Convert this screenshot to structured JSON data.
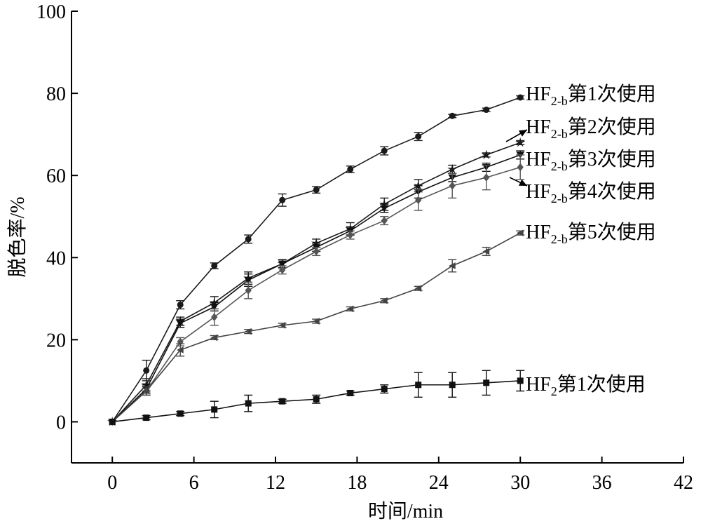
{
  "chart_data": {
    "type": "line",
    "xlabel": "时间/min",
    "ylabel": "脱色率/%",
    "xlim": [
      -3,
      42
    ],
    "ylim": [
      -10,
      100
    ],
    "xticks": [
      0,
      6,
      12,
      18,
      24,
      30,
      36,
      42
    ],
    "yticks": [
      0,
      20,
      40,
      60,
      80,
      100
    ],
    "x_tick_labels": [
      "0",
      "6",
      "12",
      "18",
      "24",
      "30",
      "36",
      "42"
    ],
    "y_tick_labels": [
      "0",
      "20",
      "40",
      "60",
      "80",
      "100"
    ],
    "grid": false,
    "x": [
      0,
      2.5,
      5,
      7.5,
      10,
      12.5,
      15,
      17.5,
      20,
      22.5,
      25,
      27.5,
      30
    ],
    "series": [
      {
        "name": "HF2-b第1次使用",
        "label_main": "HF",
        "label_sub": "2-b",
        "label_rest": "第1次使用",
        "marker": "circle",
        "color": "#1a1a1a",
        "values": [
          0,
          12.5,
          28.5,
          38,
          44.5,
          54,
          56.5,
          61.5,
          66,
          69.5,
          74.5,
          76,
          79
        ],
        "errors": [
          0,
          2.5,
          1,
          0.7,
          1,
          1.5,
          0.8,
          0.8,
          1,
          1,
          0.4,
          0.4,
          0.4
        ]
      },
      {
        "name": "HF2-b第2次使用",
        "label_main": "HF",
        "label_sub": "2-b",
        "label_rest": "第2次使用",
        "marker": "star",
        "color": "#1a1a1a",
        "values": [
          0,
          9,
          24.5,
          29,
          35,
          38.5,
          43.5,
          47,
          53,
          57.5,
          61.5,
          65,
          68
        ],
        "errors": [
          0,
          1.5,
          1,
          1.5,
          1.5,
          1,
          1,
          1.5,
          1.5,
          1.5,
          1,
          0.5,
          0.5
        ]
      },
      {
        "name": "HF2-b第3次使用",
        "label_main": "HF",
        "label_sub": "2-b",
        "label_rest": "第3次使用",
        "marker": "triangle-down",
        "color": "#111111",
        "values": [
          0,
          8,
          24,
          28,
          34.5,
          38.5,
          42.5,
          46.5,
          52,
          56,
          59.5,
          62,
          65
        ],
        "errors": [
          0,
          1,
          1,
          1,
          1.5,
          1,
          1,
          1,
          1,
          1.5,
          1,
          1,
          1
        ]
      },
      {
        "name": "HF2-b第4次使用",
        "label_main": "HF",
        "label_sub": "2-b",
        "label_rest": "第4次使用",
        "marker": "diamond",
        "color": "#555555",
        "values": [
          0,
          7.5,
          19.5,
          25.5,
          32,
          37,
          41.5,
          45.5,
          49,
          54,
          57.5,
          59.5,
          62
        ],
        "errors": [
          0,
          1,
          1,
          2,
          2,
          1,
          1,
          1,
          1,
          2.5,
          3,
          3,
          3
        ]
      },
      {
        "name": "HF2-b第5次使用",
        "label_main": "HF",
        "label_sub": "2-b",
        "label_rest": "第5次使用",
        "marker": "tri-left",
        "color": "#444444",
        "values": [
          0,
          7.5,
          17.5,
          20.5,
          22,
          23.5,
          24.5,
          27.5,
          29.5,
          32.5,
          38,
          41.5,
          46
        ],
        "errors": [
          0,
          1,
          1.5,
          0.5,
          0.5,
          0.5,
          0.5,
          0.5,
          0.5,
          0.5,
          1.5,
          1,
          0.5
        ]
      },
      {
        "name": "HF2第1次使用",
        "label_main": "HF",
        "label_sub": "2",
        "label_rest": "第1次使用",
        "marker": "square",
        "color": "#111111",
        "values": [
          0,
          1,
          2,
          3,
          4.5,
          5,
          5.5,
          7,
          8,
          9,
          9,
          9.5,
          10
        ],
        "errors": [
          0,
          0.5,
          0.5,
          2,
          2,
          0.5,
          1,
          0.5,
          1,
          3,
          3,
          3,
          2.5
        ]
      }
    ]
  }
}
